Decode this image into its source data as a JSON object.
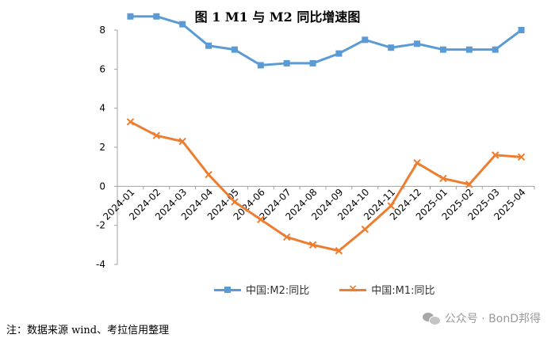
{
  "chart_data": {
    "type": "line",
    "title": "图 1 M1 与 M2 同比增速图",
    "categories": [
      "2024-01",
      "2024-02",
      "2024-03",
      "2024-04",
      "2024-05",
      "2024-06",
      "2024-07",
      "2024-08",
      "2024-09",
      "2024-10",
      "2024-11",
      "2024-12",
      "2025-01",
      "2025-02",
      "2025-03",
      "2025-04"
    ],
    "series": [
      {
        "name": "中国:M2:同比",
        "color": "#5B9BD5",
        "marker": "square",
        "values": [
          8.7,
          8.7,
          8.3,
          7.2,
          7.0,
          6.2,
          6.3,
          6.3,
          6.8,
          7.5,
          7.1,
          7.3,
          7.0,
          7.0,
          7.0,
          8.0
        ]
      },
      {
        "name": "中国:M1:同比",
        "color": "#ED7D31",
        "marker": "x",
        "values": [
          3.3,
          2.6,
          2.3,
          0.6,
          -0.8,
          -1.7,
          -2.6,
          -3.0,
          -3.3,
          -2.2,
          -1.0,
          1.2,
          0.4,
          0.1,
          1.6,
          1.5
        ]
      }
    ],
    "ylim": [
      -4,
      8
    ],
    "yticks": [
      -4,
      -2,
      0,
      2,
      4,
      6,
      8
    ],
    "xlabel": "",
    "ylabel": "",
    "grid": false,
    "legend": "bottom"
  },
  "legend": {
    "m2_label": "中国:M2:同比",
    "m1_label": "中国:M1:同比"
  },
  "footnote": "注：数据来源 wind、考拉信用整理",
  "watermark": "公众号 · BonD邦得"
}
